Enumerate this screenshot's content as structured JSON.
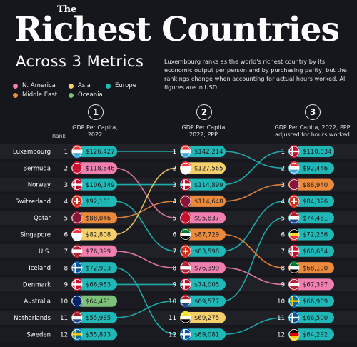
{
  "header": {
    "title_small": "The",
    "title_main": "Richest Countries",
    "subtitle": "Across 3 Metrics",
    "description": "Luxembourg ranks as the world's richest country by its economic output per person and by purchasing parity, but the rankings change when accounting for actual hours worked. All figures are in USD."
  },
  "legend": [
    {
      "name": "N. America",
      "color": "#f07fb0"
    },
    {
      "name": "Asia",
      "color": "#f4cf6a"
    },
    {
      "name": "Europe",
      "color": "#1fb8b7"
    },
    {
      "name": "Middle East",
      "color": "#ec8a3c"
    },
    {
      "name": "Oceania",
      "color": "#7cc07a"
    }
  ],
  "columns": [
    {
      "number": "1",
      "title": "GDP Per Capita,\n2022"
    },
    {
      "number": "2",
      "title": "GDP Per Capita\n2022, PPP"
    },
    {
      "number": "3",
      "title": "GDP Per Capita, 2022, PPP\nadjusted for hours worked"
    }
  ],
  "rank_label": "Rank",
  "chart_data": {
    "type": "table",
    "title": "The Richest Countries",
    "subtitle": "Across 3 Metrics",
    "columns": [
      "GDP Per Capita, 2022",
      "GDP Per Capita 2022, PPP",
      "GDP Per Capita, 2022, PPP adjusted for hours worked"
    ],
    "rows": [
      {
        "country": "Luxembourg",
        "region": "Europe",
        "flag": "luxembourg-flag",
        "gdp": "$126,427"
      },
      {
        "country": "Bermuda",
        "region": "N. America",
        "flag": "bermuda-flag",
        "gdp": "$118,846"
      },
      {
        "country": "Norway",
        "region": "Europe",
        "flag": "norway-flag",
        "gdp": "$106,149"
      },
      {
        "country": "Switzerland",
        "region": "Europe",
        "flag": "switzerland-flag",
        "gdp": "$92,101"
      },
      {
        "country": "Qatar",
        "region": "Middle East",
        "flag": "qatar-flag",
        "gdp": "$88,046"
      },
      {
        "country": "Singapore",
        "region": "Asia",
        "flag": "singapore-flag",
        "gdp": "$82,808"
      },
      {
        "country": "U.S.",
        "region": "N. America",
        "flag": "us-flag",
        "gdp": "$76,399"
      },
      {
        "country": "Iceland",
        "region": "Europe",
        "flag": "iceland-flag",
        "gdp": "$72,903"
      },
      {
        "country": "Denmark",
        "region": "Europe",
        "flag": "denmark-flag",
        "gdp": "$66,983"
      },
      {
        "country": "Australia",
        "region": "Oceania",
        "flag": "australia-flag",
        "gdp": "$64,491"
      },
      {
        "country": "Netherlands",
        "region": "Europe",
        "flag": "netherlands-flag",
        "gdp": "$55,985"
      },
      {
        "country": "Sweden",
        "region": "Europe",
        "flag": "sweden-flag",
        "gdp": "$55,873"
      }
    ],
    "ppp": [
      {
        "rank": 1,
        "value": "$142,214",
        "region": "Europe",
        "flag": "luxembourg-flag"
      },
      {
        "rank": 2,
        "value": "$127,565",
        "region": "Asia",
        "flag": "singapore-flag"
      },
      {
        "rank": 3,
        "value": "$114,899",
        "region": "Europe",
        "flag": "norway-flag"
      },
      {
        "rank": 4,
        "value": "$114,648",
        "region": "Middle East",
        "flag": "qatar-flag"
      },
      {
        "rank": 5,
        "value": "$95,837",
        "region": "N. America",
        "flag": "bermuda-flag"
      },
      {
        "rank": 6,
        "value": "$87,729",
        "region": "Middle East",
        "flag": "uae-flag"
      },
      {
        "rank": 7,
        "value": "$83,598",
        "region": "Europe",
        "flag": "switzerland-flag"
      },
      {
        "rank": 8,
        "value": "$76,399",
        "region": "N. America",
        "flag": "us-flag"
      },
      {
        "rank": 9,
        "value": "$74,005",
        "region": "Europe",
        "flag": "norway-flag-2"
      },
      {
        "rank": 10,
        "value": "$69,577",
        "region": "Europe",
        "flag": "netherlands-flag"
      },
      {
        "rank": 11,
        "value": "$69,275",
        "region": "Asia",
        "flag": "brunei-flag"
      },
      {
        "rank": 12,
        "value": "$69,081",
        "region": "Europe",
        "flag": "iceland-flag"
      }
    ],
    "hours": [
      {
        "rank": 1,
        "value": "$110,834",
        "region": "Europe",
        "flag": "norway-flag"
      },
      {
        "rank": 2,
        "value": "$92,446",
        "region": "Europe",
        "flag": "luxembourg-flag"
      },
      {
        "rank": 3,
        "value": "$88,940",
        "region": "Middle East",
        "flag": "qatar-flag"
      },
      {
        "rank": 4,
        "value": "$84,326",
        "region": "Europe",
        "flag": "switzerland-flag"
      },
      {
        "rank": 5,
        "value": "$74,461",
        "region": "Europe",
        "flag": "netherlands-flag"
      },
      {
        "rank": 6,
        "value": "$72,256",
        "region": "Europe",
        "flag": "belgium-flag"
      },
      {
        "rank": 7,
        "value": "$68,654",
        "region": "Europe",
        "flag": "denmark-flag"
      },
      {
        "rank": 8,
        "value": "$68,100",
        "region": "Middle East",
        "flag": "uae-flag"
      },
      {
        "rank": 9,
        "value": "$67,397",
        "region": "N. America",
        "flag": "us-flag"
      },
      {
        "rank": 10,
        "value": "$66,909",
        "region": "Europe",
        "flag": "sweden-flag"
      },
      {
        "rank": 11,
        "value": "$66,500",
        "region": "Europe",
        "flag": "iceland-flag"
      },
      {
        "rank": 12,
        "value": "$64,292",
        "region": "Europe",
        "flag": "germany-flag"
      }
    ],
    "links_col1_to_col2": [
      [
        1,
        1
      ],
      [
        2,
        5
      ],
      [
        3,
        3
      ],
      [
        4,
        7
      ],
      [
        5,
        4
      ],
      [
        6,
        2
      ],
      [
        7,
        8
      ],
      [
        8,
        12
      ],
      [
        9,
        9
      ],
      [
        11,
        10
      ]
    ],
    "links_col2_to_col3": [
      [
        1,
        2
      ],
      [
        3,
        1
      ],
      [
        4,
        3
      ],
      [
        7,
        4
      ],
      [
        10,
        5
      ],
      [
        8,
        9
      ],
      [
        12,
        11
      ],
      [
        6,
        8
      ]
    ]
  }
}
